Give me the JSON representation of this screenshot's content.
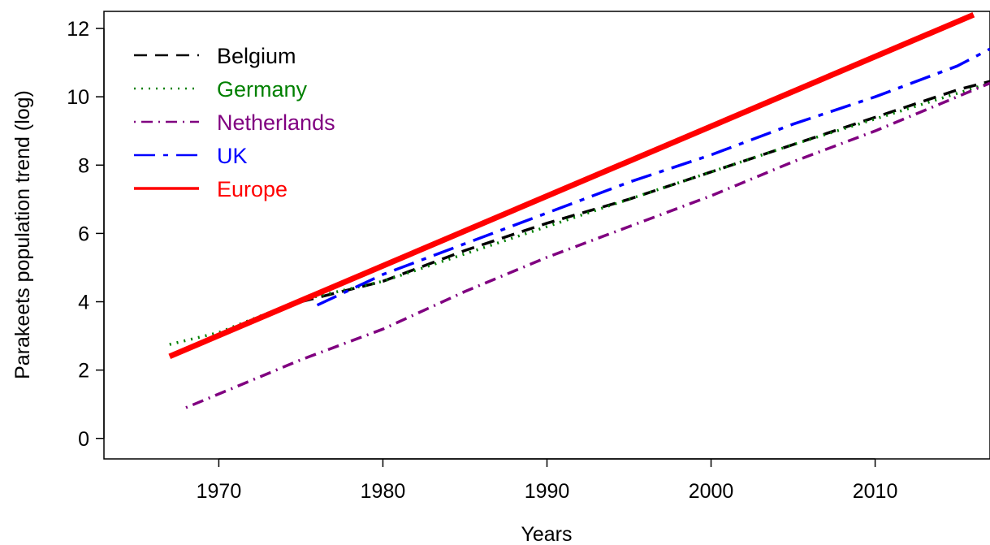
{
  "chart_data": {
    "type": "line",
    "title": "",
    "xlabel": "Years",
    "ylabel": "Parakeets population trend (log)",
    "xlim": [
      1963,
      2017
    ],
    "ylim": [
      -0.6,
      12.5
    ],
    "xticks": [
      1970,
      1980,
      1990,
      2000,
      2010
    ],
    "yticks": [
      0,
      2,
      4,
      6,
      8,
      10,
      12
    ],
    "grid": false,
    "legend_position": "top-left",
    "series": [
      {
        "name": "Belgium",
        "color": "#000000",
        "style": "dashed",
        "x": [
          1975,
          1980,
          1985,
          1990,
          1995,
          2000,
          2005,
          2010,
          2015,
          2017
        ],
        "y": [
          4.0,
          4.6,
          5.5,
          6.3,
          7.0,
          7.8,
          8.6,
          9.4,
          10.2,
          10.45
        ]
      },
      {
        "name": "Germany",
        "color": "#008000",
        "style": "dotted",
        "x": [
          1967,
          1970,
          1975,
          1980,
          1985,
          1990,
          1995,
          2000,
          2005,
          2010,
          2015,
          2017
        ],
        "y": [
          2.75,
          3.1,
          4.05,
          4.6,
          5.4,
          6.2,
          7.0,
          7.8,
          8.6,
          9.35,
          10.1,
          10.4
        ]
      },
      {
        "name": "Netherlands",
        "color": "#800080",
        "style": "dotdash",
        "x": [
          1968,
          1975,
          1980,
          1985,
          1990,
          1995,
          2000,
          2005,
          2010,
          2015,
          2017
        ],
        "y": [
          0.9,
          2.3,
          3.2,
          4.3,
          5.3,
          6.2,
          7.1,
          8.1,
          9.0,
          10.0,
          10.4
        ]
      },
      {
        "name": "UK",
        "color": "#0000FF",
        "style": "longdash",
        "x": [
          1976,
          1980,
          1985,
          1990,
          1995,
          2000,
          2005,
          2010,
          2015,
          2017
        ],
        "y": [
          3.9,
          4.8,
          5.7,
          6.6,
          7.5,
          8.3,
          9.2,
          10.0,
          10.9,
          11.4
        ]
      },
      {
        "name": "Europe",
        "color": "#FF0000",
        "style": "solid",
        "x": [
          1967,
          2016
        ],
        "y": [
          2.4,
          12.4
        ]
      }
    ]
  }
}
